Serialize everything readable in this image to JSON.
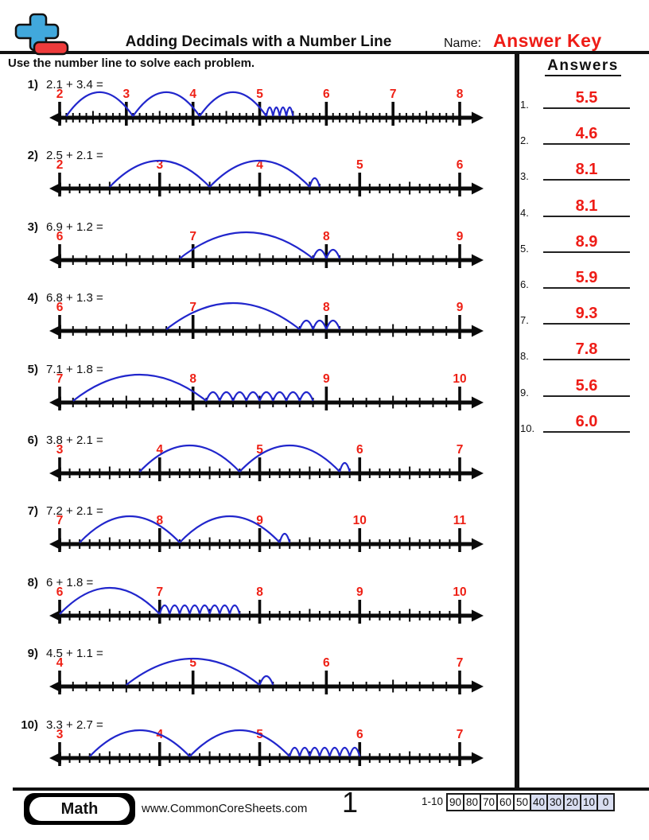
{
  "header": {
    "title": "Adding Decimals with a Number Line",
    "name_label": "Name:",
    "name_value": "Answer Key",
    "logo_colors": {
      "plus": "#41a8dc",
      "minus": "#ee3b3b"
    }
  },
  "instruction": "Use the number line to solve each problem.",
  "answers": {
    "title": "Answers",
    "items": [
      {
        "label": "1.",
        "value": "5.5"
      },
      {
        "label": "2.",
        "value": "4.6"
      },
      {
        "label": "3.",
        "value": "8.1"
      },
      {
        "label": "4.",
        "value": "8.1"
      },
      {
        "label": "5.",
        "value": "8.9"
      },
      {
        "label": "6.",
        "value": "5.9"
      },
      {
        "label": "7.",
        "value": "9.3"
      },
      {
        "label": "8.",
        "value": "7.8"
      },
      {
        "label": "9.",
        "value": "5.6"
      },
      {
        "label": "10.",
        "value": "6.0"
      }
    ]
  },
  "problems": [
    {
      "label": "1)",
      "expression": "2.1 + 3.4 =",
      "numberline": {
        "min": 2,
        "max": 8,
        "tick_labels": [
          2,
          3,
          4,
          5,
          6,
          7,
          8
        ],
        "jump_start": 2.1,
        "whole_jumps": 3,
        "tenth_jumps": 4
      }
    },
    {
      "label": "2)",
      "expression": "2.5 + 2.1 =",
      "numberline": {
        "min": 2,
        "max": 6,
        "tick_labels": [
          2,
          3,
          4,
          5,
          6
        ],
        "jump_start": 2.5,
        "whole_jumps": 2,
        "tenth_jumps": 1
      }
    },
    {
      "label": "3)",
      "expression": "6.9 + 1.2 =",
      "numberline": {
        "min": 6,
        "max": 9,
        "tick_labels": [
          6,
          7,
          8,
          9
        ],
        "jump_start": 6.9,
        "whole_jumps": 1,
        "tenth_jumps": 2
      }
    },
    {
      "label": "4)",
      "expression": "6.8 + 1.3 =",
      "numberline": {
        "min": 6,
        "max": 9,
        "tick_labels": [
          6,
          7,
          8,
          9
        ],
        "jump_start": 6.8,
        "whole_jumps": 1,
        "tenth_jumps": 3
      }
    },
    {
      "label": "5)",
      "expression": "7.1 + 1.8 =",
      "numberline": {
        "min": 7,
        "max": 10,
        "tick_labels": [
          7,
          8,
          9,
          10
        ],
        "jump_start": 7.1,
        "whole_jumps": 1,
        "tenth_jumps": 8
      }
    },
    {
      "label": "6)",
      "expression": "3.8 + 2.1 =",
      "numberline": {
        "min": 3,
        "max": 7,
        "tick_labels": [
          3,
          4,
          5,
          6,
          7
        ],
        "jump_start": 3.8,
        "whole_jumps": 2,
        "tenth_jumps": 1
      }
    },
    {
      "label": "7)",
      "expression": "7.2 + 2.1 =",
      "numberline": {
        "min": 7,
        "max": 11,
        "tick_labels": [
          7,
          8,
          9,
          10,
          11
        ],
        "jump_start": 7.2,
        "whole_jumps": 2,
        "tenth_jumps": 1
      }
    },
    {
      "label": "8)",
      "expression": "6 + 1.8 =",
      "numberline": {
        "min": 6,
        "max": 10,
        "tick_labels": [
          6,
          7,
          8,
          9,
          10
        ],
        "jump_start": 6.0,
        "whole_jumps": 1,
        "tenth_jumps": 8
      }
    },
    {
      "label": "9)",
      "expression": "4.5 + 1.1 =",
      "numberline": {
        "min": 4,
        "max": 7,
        "tick_labels": [
          4,
          5,
          6,
          7
        ],
        "jump_start": 4.5,
        "whole_jumps": 1,
        "tenth_jumps": 1
      }
    },
    {
      "label": "10)",
      "expression": "3.3 + 2.7 =",
      "numberline": {
        "min": 3,
        "max": 7,
        "tick_labels": [
          3,
          4,
          5,
          6,
          7
        ],
        "jump_start": 3.3,
        "whole_jumps": 2,
        "tenth_jumps": 7
      }
    }
  ],
  "colors": {
    "line": "#0a0a0a",
    "arc": "#2126cc",
    "tick_label": "#ee2015",
    "answer_red": "#ee1c16",
    "score_highlight": "#d9def1"
  },
  "footer": {
    "subject": "Math",
    "website": "www.CommonCoreSheets.com",
    "page_number": "1",
    "score_legend": {
      "range": "1-10",
      "scores": [
        "90",
        "80",
        "70",
        "60",
        "50",
        "40",
        "30",
        "20",
        "10",
        "0"
      ],
      "highlighted": [
        "40",
        "30",
        "20",
        "10",
        "0"
      ]
    }
  }
}
